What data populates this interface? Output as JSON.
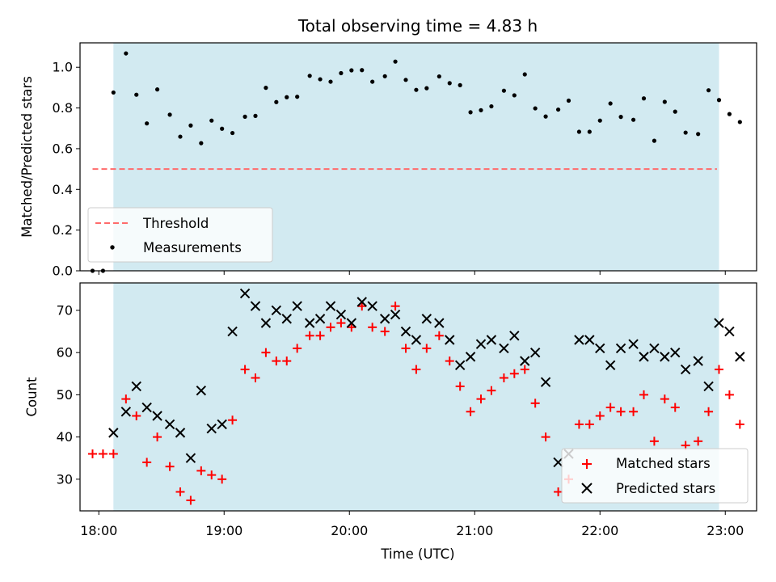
{
  "chart_data": [
    {
      "type": "scatter",
      "title": "Total observing time = 4.83 h",
      "xlabel": "",
      "ylabel": "Matched/Predicted stars",
      "xlim": [
        "17:51",
        "23:15"
      ],
      "ylim": [
        0.0,
        1.12
      ],
      "x_ticks": [
        "18:00",
        "19:00",
        "20:00",
        "21:00",
        "22:00",
        "23:00"
      ],
      "x_ticklabels_shown": false,
      "y_ticks": [
        "0.0",
        "0.2",
        "0.4",
        "0.6",
        "0.8",
        "1.0"
      ],
      "shaded_span": {
        "from": "18:07",
        "to": "22:57",
        "color": "#add8e6"
      },
      "grid": false,
      "legend": {
        "position": "lower-left",
        "entries": [
          "Threshold",
          "Measurements"
        ]
      },
      "threshold": {
        "name": "Threshold",
        "y": 0.5,
        "x_from": "17:57",
        "x_to": "22:56",
        "color": "#ff6b6b",
        "style": "dashed"
      },
      "series": [
        {
          "name": "Measurements",
          "marker": "dot",
          "color": "#000000",
          "points": [
            [
              "17:57",
              0.0
            ],
            [
              "18:02",
              0.0
            ],
            [
              "18:07",
              0.876
            ],
            [
              "18:13",
              1.068
            ],
            [
              "18:18",
              0.865
            ],
            [
              "18:23",
              0.724
            ],
            [
              "18:28",
              0.891
            ],
            [
              "18:34",
              0.767
            ],
            [
              "18:39",
              0.659
            ],
            [
              "18:44",
              0.714
            ],
            [
              "18:49",
              0.627
            ],
            [
              "18:54",
              0.738
            ],
            [
              "18:59",
              0.698
            ],
            [
              "19:04",
              0.677
            ],
            [
              "19:10",
              0.757
            ],
            [
              "19:15",
              0.761
            ],
            [
              "19:20",
              0.899
            ],
            [
              "19:25",
              0.829
            ],
            [
              "19:30",
              0.853
            ],
            [
              "19:35",
              0.855
            ],
            [
              "19:41",
              0.958
            ],
            [
              "19:46",
              0.941
            ],
            [
              "19:51",
              0.929
            ],
            [
              "19:56",
              0.971
            ],
            [
              "20:01",
              0.985
            ],
            [
              "20:06",
              0.986
            ],
            [
              "20:11",
              0.929
            ],
            [
              "20:17",
              0.956
            ],
            [
              "20:22",
              1.028
            ],
            [
              "20:27",
              0.938
            ],
            [
              "20:32",
              0.889
            ],
            [
              "20:37",
              0.897
            ],
            [
              "20:43",
              0.955
            ],
            [
              "20:48",
              0.922
            ],
            [
              "20:53",
              0.912
            ],
            [
              "20:58",
              0.779
            ],
            [
              "21:03",
              0.789
            ],
            [
              "21:08",
              0.808
            ],
            [
              "21:14",
              0.885
            ],
            [
              "21:19",
              0.862
            ],
            [
              "21:24",
              0.965
            ],
            [
              "21:29",
              0.798
            ],
            [
              "21:34",
              0.758
            ],
            [
              "21:40",
              0.792
            ],
            [
              "21:45",
              0.836
            ],
            [
              "21:50",
              0.683
            ],
            [
              "21:55",
              0.683
            ],
            [
              "22:00",
              0.738
            ],
            [
              "22:05",
              0.822
            ],
            [
              "22:10",
              0.756
            ],
            [
              "22:16",
              0.742
            ],
            [
              "22:21",
              0.847
            ],
            [
              "22:26",
              0.639
            ],
            [
              "22:31",
              0.83
            ],
            [
              "22:36",
              0.782
            ],
            [
              "22:41",
              0.679
            ],
            [
              "22:47",
              0.672
            ],
            [
              "22:52",
              0.887
            ],
            [
              "22:57",
              0.839
            ],
            [
              "23:02",
              0.77
            ],
            [
              "23:07",
              0.731
            ]
          ]
        }
      ]
    },
    {
      "type": "scatter",
      "title": "",
      "xlabel": "Time (UTC)",
      "ylabel": "Count",
      "xlim": [
        "17:51",
        "23:15"
      ],
      "ylim": [
        22.5,
        76.5
      ],
      "x_ticks": [
        "18:00",
        "19:00",
        "20:00",
        "21:00",
        "22:00",
        "23:00"
      ],
      "y_ticks": [
        "30",
        "40",
        "50",
        "60",
        "70"
      ],
      "shaded_span": {
        "from": "18:07",
        "to": "22:57",
        "color": "#add8e6"
      },
      "grid": false,
      "legend": {
        "position": "lower-right",
        "entries": [
          "Matched stars",
          "Predicted stars"
        ]
      },
      "series": [
        {
          "name": "Matched stars",
          "marker": "plus",
          "color": "#ff0000",
          "points": [
            [
              "17:57",
              36
            ],
            [
              "18:02",
              36
            ],
            [
              "18:07",
              36
            ],
            [
              "18:13",
              49
            ],
            [
              "18:18",
              45
            ],
            [
              "18:23",
              34
            ],
            [
              "18:28",
              40
            ],
            [
              "18:34",
              33
            ],
            [
              "18:39",
              27
            ],
            [
              "18:44",
              25
            ],
            [
              "18:49",
              32
            ],
            [
              "18:54",
              31
            ],
            [
              "18:59",
              30
            ],
            [
              "19:04",
              44
            ],
            [
              "19:10",
              56
            ],
            [
              "19:15",
              54
            ],
            [
              "19:20",
              60
            ],
            [
              "19:25",
              58
            ],
            [
              "19:30",
              58
            ],
            [
              "19:35",
              61
            ],
            [
              "19:41",
              64
            ],
            [
              "19:46",
              64
            ],
            [
              "19:51",
              66
            ],
            [
              "19:56",
              67
            ],
            [
              "20:01",
              66
            ],
            [
              "20:06",
              71
            ],
            [
              "20:11",
              66
            ],
            [
              "20:17",
              65
            ],
            [
              "20:22",
              71
            ],
            [
              "20:27",
              61
            ],
            [
              "20:32",
              56
            ],
            [
              "20:37",
              61
            ],
            [
              "20:43",
              64
            ],
            [
              "20:48",
              58
            ],
            [
              "20:53",
              52
            ],
            [
              "20:58",
              46
            ],
            [
              "21:03",
              49
            ],
            [
              "21:08",
              51
            ],
            [
              "21:14",
              54
            ],
            [
              "21:19",
              55
            ],
            [
              "21:24",
              56
            ],
            [
              "21:29",
              48
            ],
            [
              "21:34",
              40
            ],
            [
              "21:40",
              27
            ],
            [
              "21:45",
              30
            ],
            [
              "21:50",
              43
            ],
            [
              "21:55",
              43
            ],
            [
              "22:00",
              45
            ],
            [
              "22:05",
              47
            ],
            [
              "22:10",
              46
            ],
            [
              "22:16",
              46
            ],
            [
              "22:21",
              50
            ],
            [
              "22:26",
              39
            ],
            [
              "22:31",
              49
            ],
            [
              "22:36",
              47
            ],
            [
              "22:41",
              38
            ],
            [
              "22:47",
              39
            ],
            [
              "22:52",
              46
            ],
            [
              "22:57",
              56
            ],
            [
              "23:02",
              50
            ],
            [
              "23:07",
              43
            ]
          ]
        },
        {
          "name": "Predicted stars",
          "marker": "x",
          "color": "#000000",
          "points": [
            [
              "18:07",
              41
            ],
            [
              "18:13",
              46
            ],
            [
              "18:18",
              52
            ],
            [
              "18:23",
              47
            ],
            [
              "18:28",
              45
            ],
            [
              "18:34",
              43
            ],
            [
              "18:39",
              41
            ],
            [
              "18:44",
              35
            ],
            [
              "18:49",
              51
            ],
            [
              "18:54",
              42
            ],
            [
              "18:59",
              43
            ],
            [
              "19:04",
              65
            ],
            [
              "19:10",
              74
            ],
            [
              "19:15",
              71
            ],
            [
              "19:20",
              67
            ],
            [
              "19:25",
              70
            ],
            [
              "19:30",
              68
            ],
            [
              "19:35",
              71
            ],
            [
              "19:41",
              67
            ],
            [
              "19:46",
              68
            ],
            [
              "19:51",
              71
            ],
            [
              "19:56",
              69
            ],
            [
              "20:01",
              67
            ],
            [
              "20:06",
              72
            ],
            [
              "20:11",
              71
            ],
            [
              "20:17",
              68
            ],
            [
              "20:22",
              69
            ],
            [
              "20:27",
              65
            ],
            [
              "20:32",
              63
            ],
            [
              "20:37",
              68
            ],
            [
              "20:43",
              67
            ],
            [
              "20:48",
              63
            ],
            [
              "20:53",
              57
            ],
            [
              "20:58",
              59
            ],
            [
              "21:03",
              62
            ],
            [
              "21:08",
              63
            ],
            [
              "21:14",
              61
            ],
            [
              "21:19",
              64
            ],
            [
              "21:24",
              58
            ],
            [
              "21:29",
              60
            ],
            [
              "21:34",
              53
            ],
            [
              "21:40",
              34
            ],
            [
              "21:45",
              36
            ],
            [
              "21:50",
              63
            ],
            [
              "21:55",
              63
            ],
            [
              "22:00",
              61
            ],
            [
              "22:05",
              57
            ],
            [
              "22:10",
              61
            ],
            [
              "22:16",
              62
            ],
            [
              "22:21",
              59
            ],
            [
              "22:26",
              61
            ],
            [
              "22:31",
              59
            ],
            [
              "22:36",
              60
            ],
            [
              "22:41",
              56
            ],
            [
              "22:47",
              58
            ],
            [
              "22:52",
              52
            ],
            [
              "22:57",
              67
            ],
            [
              "23:02",
              65
            ],
            [
              "23:07",
              59
            ]
          ]
        }
      ]
    }
  ]
}
